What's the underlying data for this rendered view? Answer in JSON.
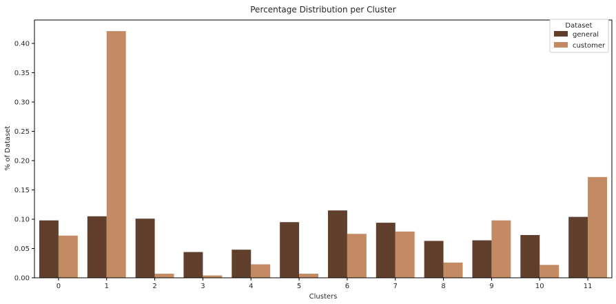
{
  "chart_data": {
    "type": "bar",
    "title": "Percentage Distribution per Cluster",
    "xlabel": "Clusters",
    "ylabel": "% of Dataset",
    "categories": [
      "0",
      "1",
      "2",
      "3",
      "4",
      "5",
      "6",
      "7",
      "8",
      "9",
      "10",
      "11"
    ],
    "series": [
      {
        "name": "general",
        "color": "#603f2d",
        "values": [
          0.098,
          0.105,
          0.101,
          0.044,
          0.048,
          0.095,
          0.115,
          0.094,
          0.063,
          0.064,
          0.073,
          0.104
        ]
      },
      {
        "name": "customer",
        "color": "#c48a63",
        "values": [
          0.072,
          0.421,
          0.007,
          0.004,
          0.023,
          0.007,
          0.075,
          0.079,
          0.026,
          0.098,
          0.022,
          0.172
        ]
      }
    ],
    "ylim": [
      0,
      0.44
    ],
    "yticks": [
      "0.00",
      "0.05",
      "0.10",
      "0.15",
      "0.20",
      "0.25",
      "0.30",
      "0.35",
      "0.40"
    ],
    "legend": {
      "title": "Dataset",
      "position": "top-right"
    },
    "grid": false
  }
}
